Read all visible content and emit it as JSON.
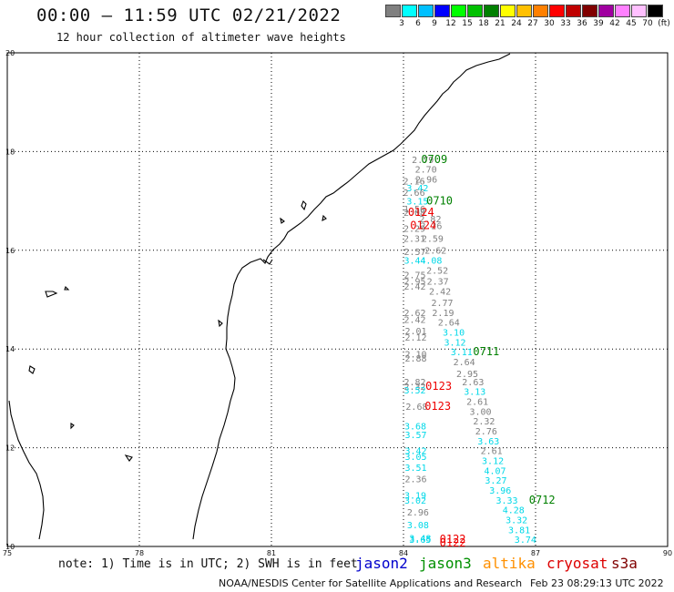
{
  "title": "00:00 – 11:59 UTC 02/21/2022",
  "subtitle": "12 hour collection of altimeter wave heights",
  "legend": {
    "units": "(ft)",
    "colors": [
      "#808080",
      "#00ffff",
      "#00c0ff",
      "#0000ff",
      "#00ff00",
      "#00c000",
      "#008000",
      "#ffff00",
      "#ffc000",
      "#ff8000",
      "#ff0000",
      "#c00000",
      "#800000",
      "#a000a0",
      "#ff80ff",
      "#ffc0ff",
      "#000000"
    ],
    "labels": [
      "3",
      "6",
      "9",
      "12",
      "15",
      "18",
      "21",
      "24",
      "27",
      "30",
      "33",
      "36",
      "39",
      "42",
      "45",
      "70"
    ]
  },
  "map": {
    "lon_ticks": [
      "75",
      "78",
      "81",
      "84",
      "87",
      "90"
    ],
    "lat_ticks": [
      "10",
      "12",
      "14",
      "16",
      "18",
      "20"
    ],
    "lon_range": [
      75,
      90
    ],
    "lat_range": [
      10,
      20
    ],
    "grid": "dotted",
    "observations": [
      {
        "lon": 84.19,
        "lat": 17.77,
        "v": "2.79",
        "c": "#808080"
      },
      {
        "lon": 84.26,
        "lat": 17.57,
        "v": "2.70",
        "c": "#808080"
      },
      {
        "lon": 84.27,
        "lat": 17.37,
        "v": "2.96",
        "c": "#808080"
      },
      {
        "lon": 83.99,
        "lat": 17.33,
        "v": "2.16",
        "c": "#808080"
      },
      {
        "lon": 84.07,
        "lat": 17.2,
        "v": "3.42",
        "c": "#00d8e8"
      },
      {
        "lon": 83.99,
        "lat": 17.1,
        "v": "2.66",
        "c": "#808080"
      },
      {
        "lon": 84.07,
        "lat": 16.93,
        "v": "3.15",
        "c": "#00d8e8"
      },
      {
        "lon": 84.0,
        "lat": 16.77,
        "v": "1.56",
        "c": "#808080"
      },
      {
        "lon": 84.0,
        "lat": 16.7,
        "v": "2.08",
        "c": "#808080"
      },
      {
        "lon": 84.36,
        "lat": 16.57,
        "v": "2.82",
        "c": "#808080"
      },
      {
        "lon": 84.0,
        "lat": 16.37,
        "v": "2.29",
        "c": "#808080"
      },
      {
        "lon": 84.38,
        "lat": 16.43,
        "v": "2.26",
        "c": "#808080"
      },
      {
        "lon": 84.0,
        "lat": 16.17,
        "v": "2.31",
        "c": "#808080"
      },
      {
        "lon": 84.41,
        "lat": 16.17,
        "v": "2.59",
        "c": "#808080"
      },
      {
        "lon": 84.48,
        "lat": 15.93,
        "v": "2.62",
        "c": "#808080"
      },
      {
        "lon": 84.01,
        "lat": 15.9,
        "v": "2.57",
        "c": "#808080"
      },
      {
        "lon": 84.01,
        "lat": 15.73,
        "v": "3.44",
        "c": "#00d8e8"
      },
      {
        "lon": 84.38,
        "lat": 15.73,
        "v": "4.08",
        "c": "#00d8e8"
      },
      {
        "lon": 84.52,
        "lat": 15.53,
        "v": "2.52",
        "c": "#808080"
      },
      {
        "lon": 84.01,
        "lat": 15.43,
        "v": "2.75",
        "c": "#808080"
      },
      {
        "lon": 84.01,
        "lat": 15.3,
        "v": "2.95",
        "c": "#808080"
      },
      {
        "lon": 84.53,
        "lat": 15.3,
        "v": "2.37",
        "c": "#808080"
      },
      {
        "lon": 84.01,
        "lat": 15.2,
        "v": "2.42",
        "c": "#808080"
      },
      {
        "lon": 84.58,
        "lat": 15.1,
        "v": "2.42",
        "c": "#808080"
      },
      {
        "lon": 84.63,
        "lat": 14.87,
        "v": "2.77",
        "c": "#808080"
      },
      {
        "lon": 84.01,
        "lat": 14.67,
        "v": "2.62",
        "c": "#808080"
      },
      {
        "lon": 84.65,
        "lat": 14.67,
        "v": "2.19",
        "c": "#808080"
      },
      {
        "lon": 84.01,
        "lat": 14.53,
        "v": "2.42",
        "c": "#808080"
      },
      {
        "lon": 84.78,
        "lat": 14.47,
        "v": "2.64",
        "c": "#808080"
      },
      {
        "lon": 84.03,
        "lat": 14.3,
        "v": "2.01",
        "c": "#808080"
      },
      {
        "lon": 84.89,
        "lat": 14.27,
        "v": "3.10",
        "c": "#00d8e8"
      },
      {
        "lon": 84.03,
        "lat": 14.17,
        "v": "2.12",
        "c": "#808080"
      },
      {
        "lon": 84.92,
        "lat": 14.07,
        "v": "3.12",
        "c": "#00d8e8"
      },
      {
        "lon": 85.07,
        "lat": 13.87,
        "v": "3.11",
        "c": "#00d8e8"
      },
      {
        "lon": 84.03,
        "lat": 13.83,
        "v": "2.10",
        "c": "#808080"
      },
      {
        "lon": 84.03,
        "lat": 13.75,
        "v": "2.88",
        "c": "#808080"
      },
      {
        "lon": 85.13,
        "lat": 13.67,
        "v": "2.64",
        "c": "#808080"
      },
      {
        "lon": 85.2,
        "lat": 13.43,
        "v": "2.95",
        "c": "#808080"
      },
      {
        "lon": 84.01,
        "lat": 13.27,
        "v": "2.82",
        "c": "#808080"
      },
      {
        "lon": 85.33,
        "lat": 13.27,
        "v": "2.63",
        "c": "#808080"
      },
      {
        "lon": 84.01,
        "lat": 13.17,
        "v": "2.32",
        "c": "#808080"
      },
      {
        "lon": 84.01,
        "lat": 13.1,
        "v": "3.52",
        "c": "#00d8e8"
      },
      {
        "lon": 85.37,
        "lat": 13.07,
        "v": "3.13",
        "c": "#00d8e8"
      },
      {
        "lon": 85.43,
        "lat": 12.87,
        "v": "2.61",
        "c": "#808080"
      },
      {
        "lon": 84.05,
        "lat": 12.77,
        "v": "2.68",
        "c": "#808080"
      },
      {
        "lon": 85.5,
        "lat": 12.67,
        "v": "3.00",
        "c": "#808080"
      },
      {
        "lon": 85.58,
        "lat": 12.47,
        "v": "2.32",
        "c": "#808080"
      },
      {
        "lon": 84.02,
        "lat": 12.37,
        "v": "3.68",
        "c": "#00d8e8"
      },
      {
        "lon": 85.63,
        "lat": 12.27,
        "v": "2.76",
        "c": "#808080"
      },
      {
        "lon": 84.03,
        "lat": 12.2,
        "v": "3.57",
        "c": "#00d8e8"
      },
      {
        "lon": 85.68,
        "lat": 12.07,
        "v": "3.63",
        "c": "#00d8e8"
      },
      {
        "lon": 85.75,
        "lat": 11.87,
        "v": "2.61",
        "c": "#808080"
      },
      {
        "lon": 84.03,
        "lat": 11.87,
        "v": "3.42",
        "c": "#00d8e8"
      },
      {
        "lon": 84.03,
        "lat": 11.75,
        "v": "3.05",
        "c": "#00d8e8"
      },
      {
        "lon": 85.78,
        "lat": 11.67,
        "v": "3.12",
        "c": "#00d8e8"
      },
      {
        "lon": 84.03,
        "lat": 11.53,
        "v": "3.51",
        "c": "#00d8e8"
      },
      {
        "lon": 85.83,
        "lat": 11.47,
        "v": "4.07",
        "c": "#00d8e8"
      },
      {
        "lon": 84.03,
        "lat": 11.3,
        "v": "2.36",
        "c": "#808080"
      },
      {
        "lon": 85.85,
        "lat": 11.27,
        "v": "3.27",
        "c": "#00d8e8"
      },
      {
        "lon": 85.95,
        "lat": 11.07,
        "v": "3.96",
        "c": "#00d8e8"
      },
      {
        "lon": 84.02,
        "lat": 10.97,
        "v": "3.19",
        "c": "#00d8e8"
      },
      {
        "lon": 86.1,
        "lat": 10.87,
        "v": "3.33",
        "c": "#00d8e8"
      },
      {
        "lon": 84.02,
        "lat": 10.87,
        "v": "3.02",
        "c": "#00d8e8"
      },
      {
        "lon": 86.25,
        "lat": 10.67,
        "v": "4.28",
        "c": "#00d8e8"
      },
      {
        "lon": 84.08,
        "lat": 10.63,
        "v": "2.96",
        "c": "#808080"
      },
      {
        "lon": 86.32,
        "lat": 10.47,
        "v": "3.32",
        "c": "#00d8e8"
      },
      {
        "lon": 84.08,
        "lat": 10.37,
        "v": "3.08",
        "c": "#00d8e8"
      },
      {
        "lon": 86.38,
        "lat": 10.27,
        "v": "3.81",
        "c": "#00d8e8"
      },
      {
        "lon": 84.13,
        "lat": 10.1,
        "v": "3.48",
        "c": "#00d8e8"
      },
      {
        "lon": 84.13,
        "lat": 10.07,
        "v": "3.65",
        "c": "#00d8e8"
      },
      {
        "lon": 86.52,
        "lat": 10.07,
        "v": "3.74",
        "c": "#00d8e8"
      }
    ],
    "times": [
      {
        "lon": 84.4,
        "lat": 17.77,
        "t": "0709",
        "c": "#008000"
      },
      {
        "lon": 84.52,
        "lat": 16.93,
        "t": "0710",
        "c": "#008000"
      },
      {
        "lon": 84.1,
        "lat": 16.7,
        "t": "0124",
        "c": "#ee0000"
      },
      {
        "lon": 84.15,
        "lat": 16.43,
        "t": "0124",
        "c": "#ee0000"
      },
      {
        "lon": 85.58,
        "lat": 13.87,
        "t": "0711",
        "c": "#008000"
      },
      {
        "lon": 84.5,
        "lat": 13.17,
        "t": "0123",
        "c": "#ee0000"
      },
      {
        "lon": 84.48,
        "lat": 12.77,
        "t": "0123",
        "c": "#ee0000"
      },
      {
        "lon": 86.85,
        "lat": 10.87,
        "t": "0712",
        "c": "#008000"
      },
      {
        "lon": 84.82,
        "lat": 10.07,
        "t": "0122",
        "c": "#ee0000"
      },
      {
        "lon": 84.82,
        "lat": 10.0,
        "t": "0122",
        "c": "#ee0000"
      }
    ]
  },
  "note": "note: 1) Time is in UTC; 2) SWH is in feet",
  "missions": [
    {
      "name": "jason2",
      "color": "#0000cc"
    },
    {
      "name": "jason3",
      "color": "#009000"
    },
    {
      "name": "altika",
      "color": "#ff9000"
    },
    {
      "name": "cryosat",
      "color": "#dd0000"
    },
    {
      "name": "s3a",
      "color": "#800000"
    }
  ],
  "credit": "NOAA/NESDIS Center for Satellite Applications and Research",
  "generated": "Feb 23 08:29:13 UTC 2022"
}
